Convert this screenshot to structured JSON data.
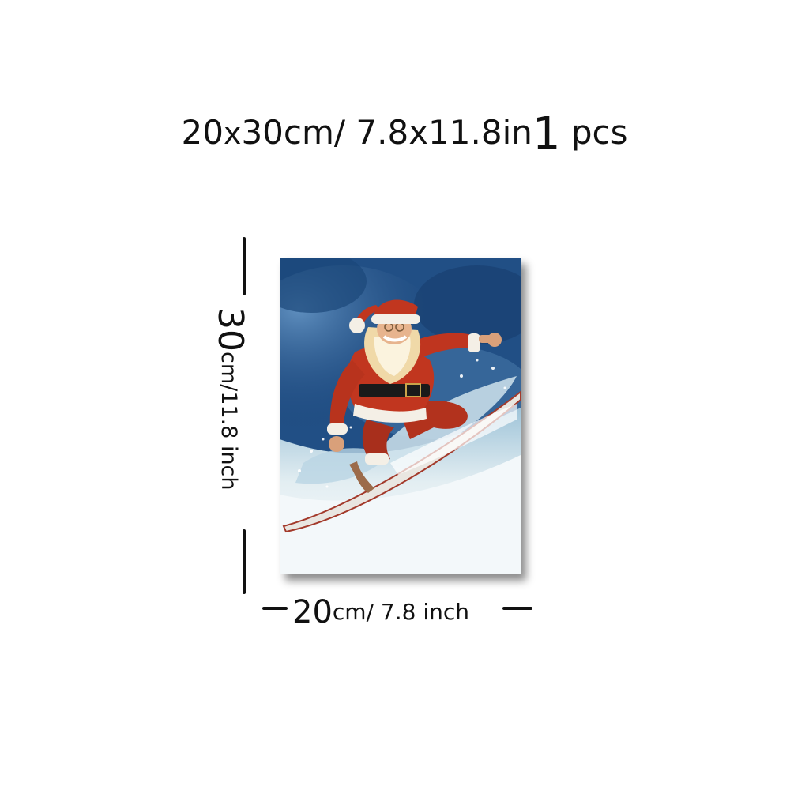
{
  "title": {
    "size_cm_w": "20",
    "size_x": "x",
    "size_cm_rest": "30cm/ 7.8x11.8in",
    "count": "1",
    "count_unit": "pcs"
  },
  "height_label": {
    "value": "30",
    "rest": "cm/11.8 inch"
  },
  "width_label": {
    "value": "20",
    "rest": "cm/ 7.8 inch"
  },
  "canvas": {
    "subject": "santa-snowboarding-watercolor",
    "colors": {
      "sky": "#1f4f86",
      "snow": "#ffffff",
      "suit": "#c1361f",
      "fur": "#f4efe6",
      "beard": "#f0d9a8",
      "belt": "#1a1a1a",
      "board": "#e8e4df"
    }
  }
}
